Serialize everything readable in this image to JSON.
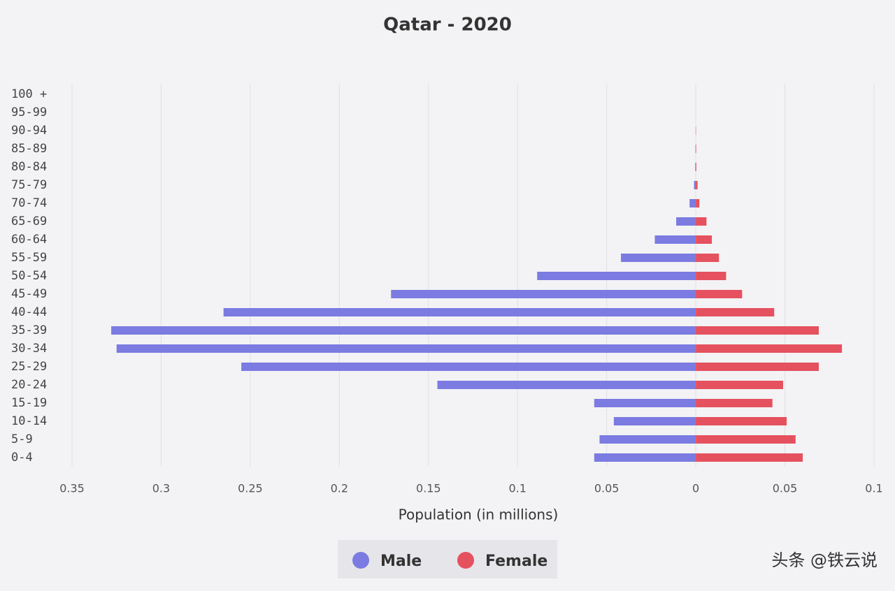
{
  "chart_data": {
    "type": "bar",
    "orientation": "horizontal",
    "title": "Qatar - 2020",
    "x_label": "Population (in millions)",
    "categories": [
      "0-4",
      "5-9",
      "10-14",
      "15-19",
      "20-24",
      "25-29",
      "30-34",
      "35-39",
      "40-44",
      "45-49",
      "50-54",
      "55-59",
      "60-64",
      "65-69",
      "70-74",
      "75-79",
      "80-84",
      "85-89",
      "90-94",
      "95-99",
      "100 +"
    ],
    "series": [
      {
        "name": "Male",
        "color": "#7b7be2",
        "values": [
          -0.057,
          -0.054,
          -0.046,
          -0.057,
          -0.145,
          -0.255,
          -0.325,
          -0.328,
          -0.265,
          -0.171,
          -0.089,
          -0.042,
          -0.023,
          -0.011,
          -0.0035,
          -0.001,
          -0.0003,
          -0.0002,
          -0.0001,
          0,
          0
        ]
      },
      {
        "name": "Female",
        "color": "#e5515f",
        "values": [
          0.06,
          0.056,
          0.051,
          0.043,
          0.049,
          0.069,
          0.082,
          0.069,
          0.044,
          0.026,
          0.017,
          0.013,
          0.009,
          0.006,
          0.002,
          0.001,
          0.0003,
          0.0002,
          0.0001,
          0,
          0
        ]
      }
    ],
    "xlim": [
      -0.35,
      0.1
    ],
    "xticks": [
      {
        "value": -0.35,
        "label": "0.35"
      },
      {
        "value": -0.3,
        "label": "0.3"
      },
      {
        "value": -0.25,
        "label": "0.25"
      },
      {
        "value": -0.2,
        "label": "0.2"
      },
      {
        "value": -0.15,
        "label": "0.15"
      },
      {
        "value": -0.1,
        "label": "0.1"
      },
      {
        "value": -0.05,
        "label": "0.05"
      },
      0,
      0.05,
      0.1
    ],
    "grid": true,
    "legend": "bottom"
  },
  "watermark": "头条 @铁云说"
}
